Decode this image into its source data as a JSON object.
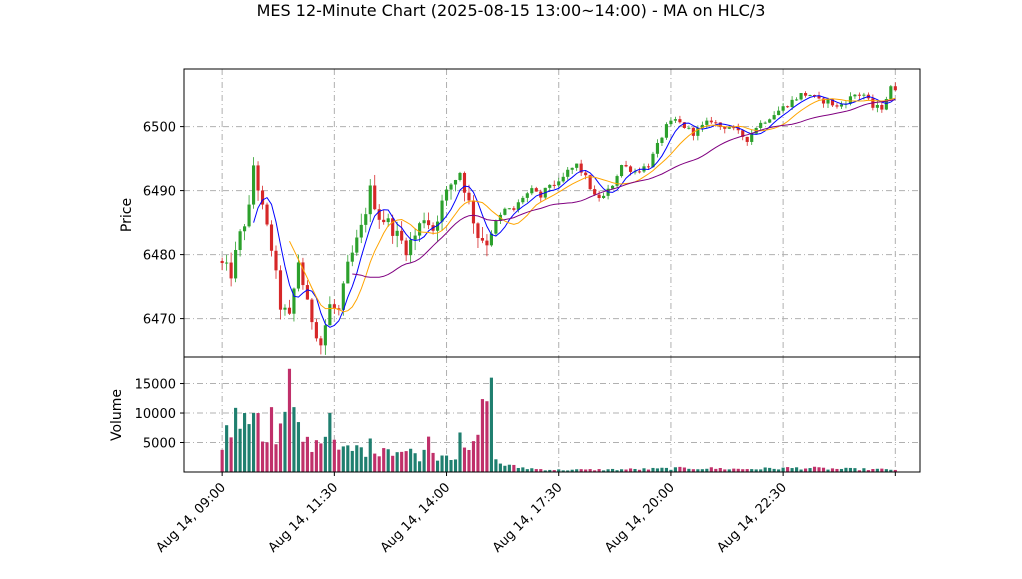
{
  "chart_data": {
    "type": "candlestick",
    "title": "MES 12-Minute Chart (2025-08-15 13:00~14:00) - MA on HLC/3",
    "price_panel": {
      "ylabel": "Price",
      "ylim": [
        6464,
        6509
      ],
      "yticks": [
        6470,
        6480,
        6490,
        6500
      ],
      "grid": true
    },
    "volume_panel": {
      "ylabel": "Volume",
      "ylim": [
        0,
        19500
      ],
      "yticks": [
        5000,
        10000,
        15000
      ],
      "grid": true
    },
    "xlim": [
      -8.5,
      155.5
    ],
    "xticks": [
      {
        "x": 0,
        "label": "Aug 14, 09:00"
      },
      {
        "x": 25,
        "label": "Aug 14, 11:30"
      },
      {
        "x": 50,
        "label": "Aug 14, 14:00"
      },
      {
        "x": 75,
        "label": "Aug 14, 17:30"
      },
      {
        "x": 100,
        "label": "Aug 14, 20:00"
      },
      {
        "x": 125,
        "label": "Aug 14, 22:30"
      },
      {
        "x": 150,
        "label": ""
      }
    ],
    "colors": {
      "up": "#2ca02c",
      "down": "#d62728",
      "ma_fast": "#0000ff",
      "ma_mid": "#ffa500",
      "ma_slow": "#800080",
      "vol_up": "#1f7f6f",
      "vol_down": "#c0306a"
    },
    "price_knots": [
      [
        0,
        6479
      ],
      [
        3,
        6477
      ],
      [
        5,
        6483
      ],
      [
        7,
        6487
      ],
      [
        8,
        6494
      ],
      [
        10,
        6487
      ],
      [
        12,
        6481
      ],
      [
        14,
        6472
      ],
      [
        16,
        6470
      ],
      [
        18,
        6479
      ],
      [
        20,
        6472
      ],
      [
        22,
        6468
      ],
      [
        23,
        6466
      ],
      [
        25,
        6472
      ],
      [
        27,
        6471
      ],
      [
        29,
        6478
      ],
      [
        32,
        6484
      ],
      [
        34,
        6490
      ],
      [
        36,
        6486
      ],
      [
        38,
        6485
      ],
      [
        40,
        6483
      ],
      [
        42,
        6481
      ],
      [
        44,
        6483
      ],
      [
        46,
        6486
      ],
      [
        48,
        6484
      ],
      [
        50,
        6488
      ],
      [
        52,
        6491
      ],
      [
        54,
        6493
      ],
      [
        56,
        6488
      ],
      [
        58,
        6483
      ],
      [
        60,
        6482
      ],
      [
        62,
        6485
      ],
      [
        64,
        6487
      ],
      [
        66,
        6487
      ],
      [
        68,
        6489
      ],
      [
        70,
        6490
      ],
      [
        72,
        6489
      ],
      [
        74,
        6491
      ],
      [
        76,
        6491
      ],
      [
        78,
        6493
      ],
      [
        80,
        6494
      ],
      [
        82,
        6492
      ],
      [
        84,
        6489
      ],
      [
        86,
        6489
      ],
      [
        88,
        6491
      ],
      [
        90,
        6494
      ],
      [
        93,
        6493
      ],
      [
        96,
        6494
      ],
      [
        98,
        6497
      ],
      [
        100,
        6500
      ],
      [
        102,
        6501
      ],
      [
        104,
        6500
      ],
      [
        106,
        6499
      ],
      [
        108,
        6500
      ],
      [
        110,
        6501
      ],
      [
        112,
        6500
      ],
      [
        114,
        6500
      ],
      [
        116,
        6499
      ],
      [
        118,
        6498
      ],
      [
        120,
        6500
      ],
      [
        122,
        6501
      ],
      [
        124,
        6502
      ],
      [
        126,
        6503
      ],
      [
        128,
        6504
      ],
      [
        130,
        6505
      ],
      [
        132,
        6505
      ],
      [
        134,
        6504
      ],
      [
        136,
        6504
      ],
      [
        138,
        6503
      ],
      [
        140,
        6504
      ],
      [
        142,
        6505
      ],
      [
        144,
        6505
      ],
      [
        146,
        6503
      ],
      [
        148,
        6503
      ],
      [
        150,
        6506
      ]
    ],
    "volume_knots": [
      [
        0,
        6200
      ],
      [
        2,
        7000
      ],
      [
        4,
        9500
      ],
      [
        6,
        9000
      ],
      [
        8,
        8000
      ],
      [
        10,
        5500
      ],
      [
        12,
        4800
      ],
      [
        14,
        9000
      ],
      [
        15,
        17500
      ],
      [
        17,
        7000
      ],
      [
        19,
        5000
      ],
      [
        21,
        5000
      ],
      [
        22,
        6000
      ],
      [
        24,
        6500
      ],
      [
        25,
        4000
      ],
      [
        27,
        3500
      ],
      [
        30,
        3800
      ],
      [
        33,
        4200
      ],
      [
        36,
        4500
      ],
      [
        38,
        4000
      ],
      [
        40,
        3500
      ],
      [
        42,
        3200
      ],
      [
        44,
        3000
      ],
      [
        46,
        2900
      ],
      [
        48,
        3100
      ],
      [
        50,
        3200
      ],
      [
        52,
        3000
      ],
      [
        54,
        3000
      ],
      [
        56,
        4000
      ],
      [
        58,
        9500
      ],
      [
        60,
        3000
      ],
      [
        62,
        1500
      ],
      [
        64,
        1000
      ],
      [
        66,
        800
      ],
      [
        70,
        500
      ],
      [
        75,
        350
      ],
      [
        80,
        380
      ],
      [
        85,
        400
      ],
      [
        90,
        450
      ],
      [
        95,
        500
      ],
      [
        100,
        600
      ],
      [
        105,
        650
      ],
      [
        110,
        600
      ],
      [
        115,
        500
      ],
      [
        120,
        550
      ],
      [
        125,
        650
      ],
      [
        130,
        700
      ],
      [
        135,
        550
      ],
      [
        140,
        500
      ],
      [
        145,
        450
      ],
      [
        150,
        420
      ]
    ],
    "volume_spikes": [
      [
        15,
        17500
      ],
      [
        60,
        16000
      ],
      [
        59,
        12000
      ],
      [
        16,
        11000
      ],
      [
        11,
        11000
      ],
      [
        8,
        10000
      ],
      [
        7,
        10000
      ],
      [
        24,
        10000
      ],
      [
        5,
        10000
      ],
      [
        53,
        6700
      ],
      [
        46,
        6000
      ]
    ],
    "ma_fast": {
      "start": 7,
      "period": 5
    },
    "ma_mid": {
      "start": 15,
      "period": 10
    },
    "ma_slow": {
      "start": 29,
      "period": 25
    },
    "n_bars": 151
  }
}
